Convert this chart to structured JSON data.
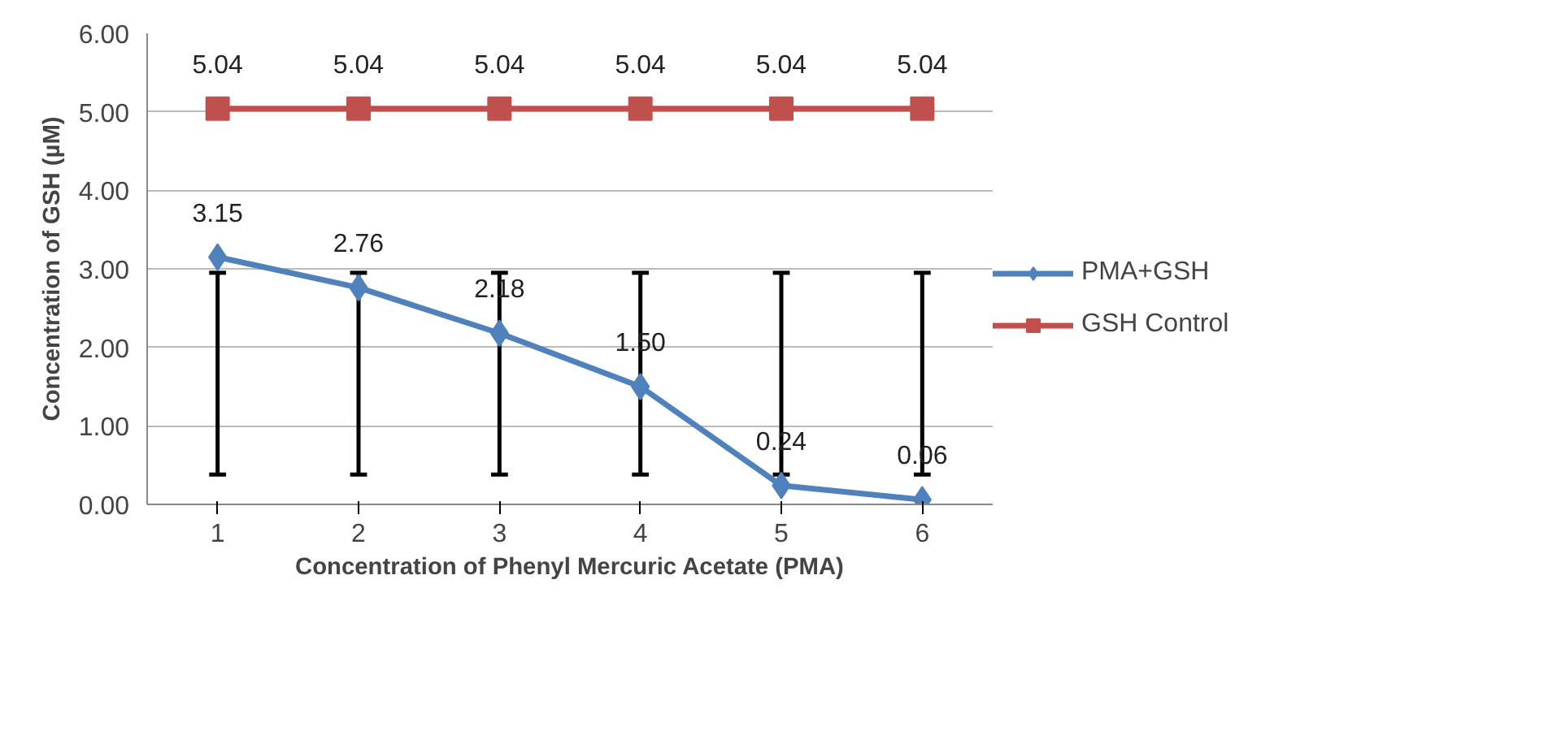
{
  "chart_data": {
    "type": "line",
    "xlabel": "Concentration of Phenyl Mercuric Acetate (PMA)",
    "ylabel": "Concentration of GSH (µM)",
    "categories": [
      "1",
      "2",
      "3",
      "4",
      "5",
      "6"
    ],
    "series": [
      {
        "name": "PMA+GSH",
        "color": "#4f81bd",
        "marker": "diamond",
        "values": [
          3.15,
          2.76,
          2.18,
          1.5,
          0.24,
          0.06
        ],
        "value_labels": [
          "3.15",
          "2.76",
          "2.18",
          "1.50",
          "0.24",
          "0.06"
        ],
        "errors": [
          [
            0.38,
            2.95
          ],
          [
            0.38,
            2.95
          ],
          [
            0.38,
            2.95
          ],
          [
            0.38,
            2.95
          ],
          [
            0.38,
            2.95
          ],
          [
            0.38,
            2.95
          ]
        ]
      },
      {
        "name": "GSH Control",
        "color": "#c0504d",
        "marker": "square",
        "values": [
          5.04,
          5.04,
          5.04,
          5.04,
          5.04,
          5.04
        ]
      }
    ],
    "ylim": [
      0,
      6
    ],
    "yticks": [
      {
        "value": 0,
        "label": "0.00"
      },
      {
        "value": 1,
        "label": "1.00"
      },
      {
        "value": 2,
        "label": "2.00"
      },
      {
        "value": 3,
        "label": "3.00"
      },
      {
        "value": 4,
        "label": "4.00"
      },
      {
        "value": 5,
        "label": "5.00"
      },
      {
        "value": 6,
        "label": "6.00"
      }
    ],
    "grid": "y",
    "legend": "right",
    "data_labels": true
  }
}
